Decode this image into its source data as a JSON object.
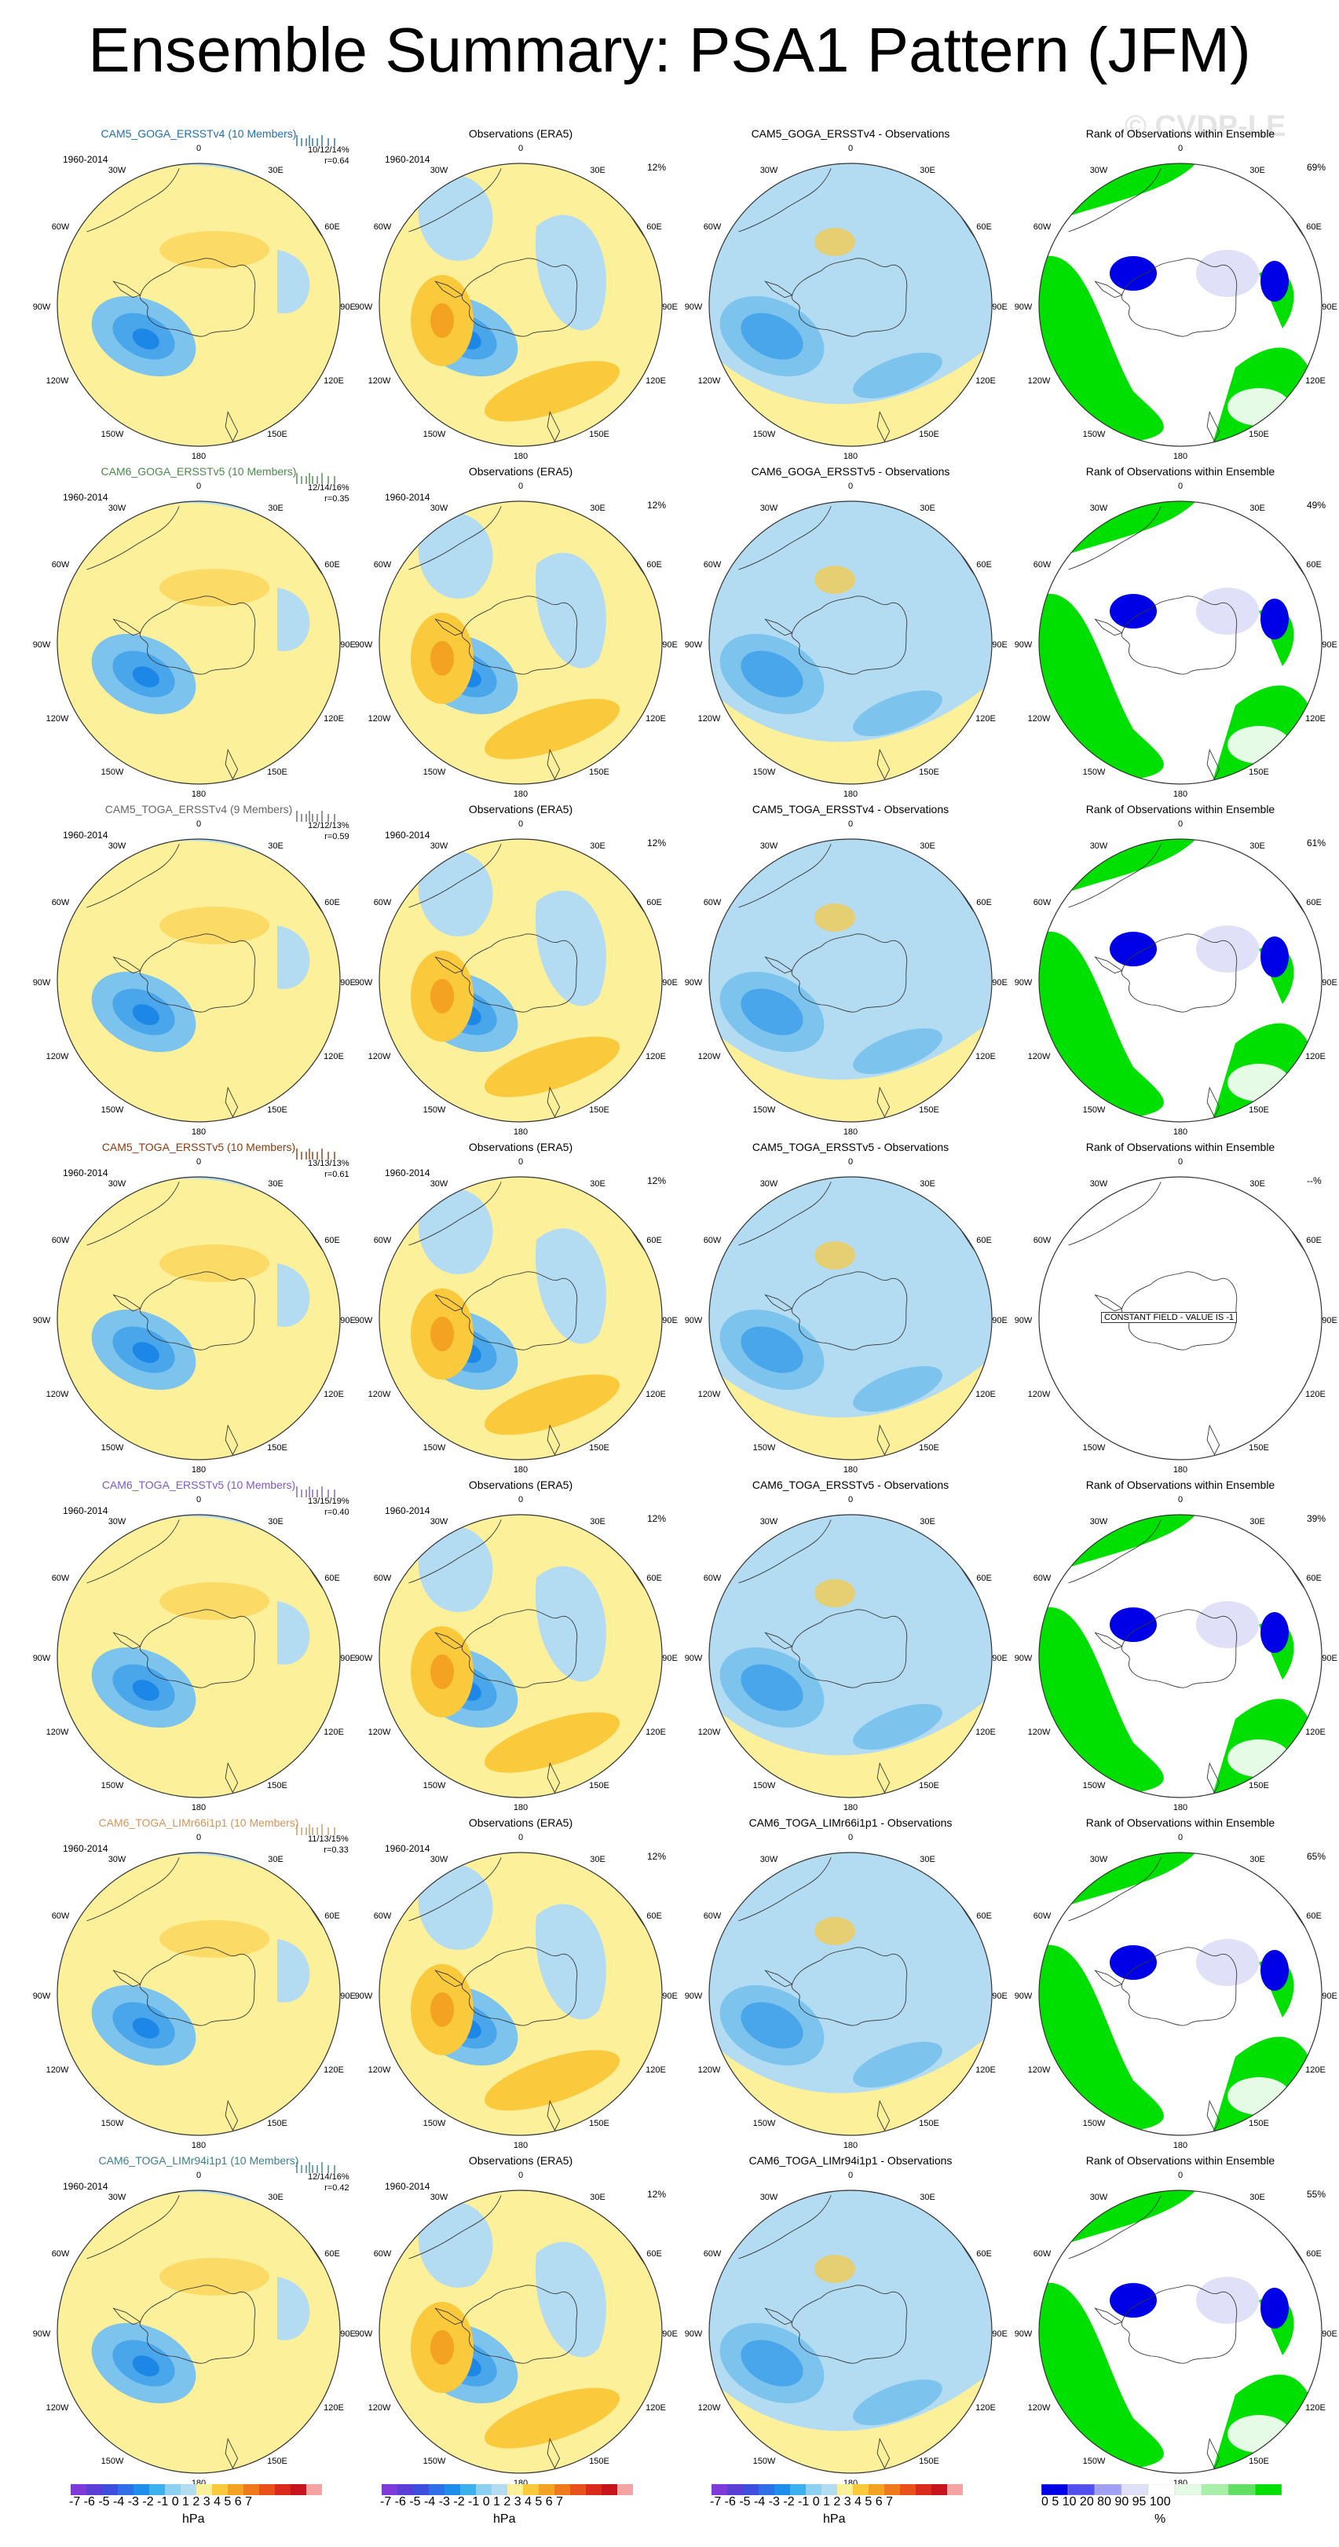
{
  "title": "Ensemble Summary: PSA1 Pattern (JFM)",
  "watermark": "© CVDP-LE",
  "map_labels": {
    "lon_top": "0",
    "lon_30w": "30W",
    "lon_30e": "30E",
    "lon_60w": "60W",
    "lon_60e": "60E",
    "lon_90w": "90W",
    "lon_90e": "90E",
    "lon_120w": "120W",
    "lon_120e": "120E",
    "lon_150w": "150W",
    "lon_150e": "150E",
    "lon_180": "180"
  },
  "rows": [
    {
      "model": "CAM5_GOGA_ERSSTv4 (10 Members)",
      "color": "#1f6fb8",
      "stats": "10/12/14%",
      "r": "r=0.64",
      "diff_title": "CAM5_GOGA_ERSSTv4 - Observations",
      "rank_pct": "69%"
    },
    {
      "model": "CAM6_GOGA_ERSSTv5 (10 Members)",
      "color": "#4a8a4a",
      "stats": "12/14/16%",
      "r": "r=0.35",
      "diff_title": "CAM6_GOGA_ERSSTv5 - Observations",
      "rank_pct": "49%"
    },
    {
      "model": "CAM5_TOGA_ERSSTv4 (9 Members)",
      "color": "#666666",
      "stats": "12/12/13%",
      "r": "r=0.59",
      "diff_title": "CAM5_TOGA_ERSSTv4 - Observations",
      "rank_pct": "61%"
    },
    {
      "model": "CAM5_TOGA_ERSSTv5 (10 Members)",
      "color": "#8b3a0e",
      "stats": "13/13/13%",
      "r": "r=0.61",
      "diff_title": "CAM5_TOGA_ERSSTv5 - Observations",
      "rank_pct": "--%",
      "rank_constant": "CONSTANT FIELD - VALUE IS -1"
    },
    {
      "model": "CAM6_TOGA_ERSSTv5 (10 Members)",
      "color": "#7a5bc8",
      "stats": "13/15/19%",
      "r": "r=0.40",
      "diff_title": "CAM6_TOGA_ERSSTv5 - Observations",
      "rank_pct": "39%"
    },
    {
      "model": "CAM6_TOGA_LIMr66i1p1 (10 Members)",
      "color": "#d2955a",
      "stats": "11/13/15%",
      "r": "r=0.33",
      "diff_title": "CAM6_TOGA_LIMr66i1p1 - Observations",
      "rank_pct": "65%"
    },
    {
      "model": "CAM6_TOGA_LIMr94i1p1 (10 Members)",
      "color": "#3d7f8a",
      "stats": "12/14/16%",
      "r": "r=0.42",
      "diff_title": "CAM6_TOGA_LIMr94i1p1 - Observations",
      "rank_pct": "55%"
    }
  ],
  "obs": {
    "title": "Observations (ERA5)",
    "period": "1960-2014",
    "pct": "12%"
  },
  "rank_title": "Rank of Observations within Ensemble",
  "colorbar_hpa": {
    "ticks": "-7 -6 -5 -4 -3 -2 -1 0  1  2  3  4  5  6  7",
    "unit": "hPa"
  },
  "colorbar_pct": {
    "ticks": "0    5   10    20     80    90  95 100",
    "unit": "%"
  },
  "colors": {
    "ocean_neg": "#b3dcf2",
    "neg2": "#7cc3ee",
    "neg3": "#4aa6ea",
    "neg4": "#1c87e6",
    "pos1": "#fdf09a",
    "pos2": "#fbc93c",
    "pos3": "#f4a221",
    "rank_green": "#00e000",
    "rank_blue": "#0000e6",
    "rank_lav": "#e0e0f8",
    "rank_light": "#e6fbe6"
  }
}
